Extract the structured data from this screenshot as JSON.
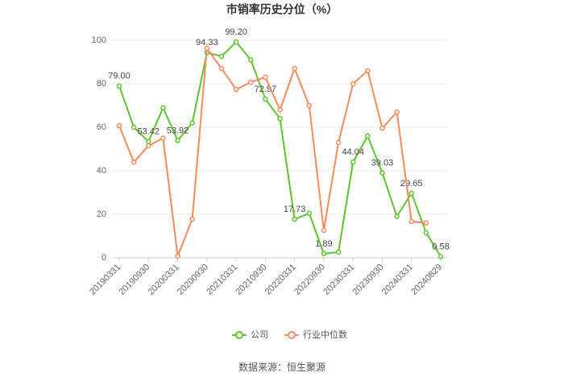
{
  "chart_data": {
    "type": "line",
    "title": "市销率历史分位（%）",
    "categories": [
      "20190331",
      null,
      "20190930",
      null,
      "20200331",
      null,
      "20200930",
      null,
      "20210331",
      null,
      "20210930",
      null,
      "20220331",
      null,
      "20220930",
      null,
      "20230331",
      null,
      "20230930",
      null,
      "20240331",
      null,
      "20240829"
    ],
    "series": [
      {
        "name": "公司",
        "color": "#5ec52c",
        "values": [
          79.0,
          60,
          53.42,
          69,
          53.92,
          62,
          94.33,
          92.6,
          99.2,
          91,
          72.97,
          64,
          17.73,
          20.4,
          1.89,
          2.6,
          44.04,
          56,
          39.03,
          19,
          29.65,
          11.5,
          0.58
        ],
        "value_labels": [
          "79.00",
          null,
          "53.42",
          null,
          "53.92",
          null,
          "94.33",
          null,
          "99.20",
          null,
          "72.97",
          null,
          "17.73",
          null,
          "1.89",
          null,
          "44.04",
          null,
          "39.03",
          null,
          "29.65",
          null,
          "0.58"
        ]
      },
      {
        "name": "行业中位数",
        "color": "#f58b5c",
        "values": [
          60.7,
          44,
          51.5,
          55,
          0.7,
          17.8,
          96.3,
          87,
          77.4,
          80.7,
          83,
          68,
          87,
          70,
          12.6,
          53,
          80,
          86,
          59.6,
          67,
          16.7,
          16,
          null
        ]
      }
    ],
    "ylim": [
      0,
      100
    ],
    "yticks": [
      0,
      20,
      40,
      60,
      80,
      100
    ],
    "grid": true,
    "source": "数据来源：恒生聚源"
  }
}
